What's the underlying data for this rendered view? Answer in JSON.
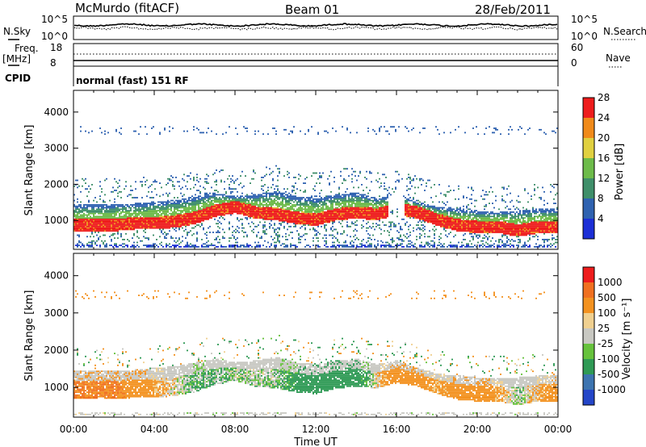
{
  "header": {
    "station": "McMurdo (fitACF)",
    "beam": "Beam 01",
    "date": "28/Feb/2011"
  },
  "top_panel": {
    "nsky_label": "N.Sky",
    "nsearch_label": "N.Search",
    "left_ticks": [
      "10^5",
      "10^0"
    ],
    "right_ticks": [
      "10^5",
      "10^0"
    ],
    "freq_label_line1": "Freq.",
    "freq_label_line2": "[MHz]",
    "freq_ticks": [
      "18",
      "8"
    ],
    "nave_label": "Nave",
    "nave_ticks": [
      "60",
      "0"
    ],
    "cpid_label": "CPID",
    "cpid_value": "normal (fast) 151 RF"
  },
  "chart_data": [
    {
      "type": "heatmap",
      "name": "power-panel",
      "xlabel": "Time UT",
      "ylabel": "Slant Range [km]",
      "colorbar_label": "Power [dB]",
      "x_ticks": [
        "00:00",
        "04:00",
        "08:00",
        "12:00",
        "16:00",
        "20:00",
        "00:00"
      ],
      "y_ticks": [
        1000,
        2000,
        3000,
        4000
      ],
      "ylim": [
        200,
        4600
      ],
      "xlim_hours": [
        0,
        24
      ],
      "colorbar_ticks": [
        "4",
        "8",
        "12",
        "16",
        "20",
        "24",
        "28"
      ],
      "colors": [
        "#1c2fd6",
        "#2f62b0",
        "#3f8f6a",
        "#6dbb4a",
        "#e0d040",
        "#f08a1a",
        "#ee1c1c"
      ],
      "series": [
        {
          "role": "core_range_km",
          "x_hours": [
            0,
            2,
            3,
            4,
            5,
            6,
            7,
            8,
            9,
            10,
            11,
            12,
            13,
            14,
            15,
            16,
            17,
            18,
            19,
            20,
            21,
            22,
            23,
            24
          ],
          "values": [
            850,
            850,
            900,
            900,
            950,
            1050,
            1250,
            1350,
            1200,
            1150,
            1050,
            1000,
            1150,
            1200,
            1150,
            1300,
            1200,
            1000,
            850,
            800,
            800,
            700,
            800,
            800
          ]
        },
        {
          "role": "upper_range_km",
          "x_hours": [
            0,
            2,
            3,
            4,
            5,
            6,
            7,
            8,
            9,
            10,
            11,
            12,
            13,
            14,
            15,
            16,
            17,
            18,
            19,
            20,
            21,
            22,
            23,
            24
          ],
          "values": [
            1450,
            1450,
            1450,
            1500,
            1550,
            1650,
            1750,
            1650,
            1700,
            1800,
            1650,
            1600,
            1700,
            1750,
            1600,
            1700,
            1500,
            1350,
            1300,
            1250,
            1250,
            1250,
            1300,
            1300
          ]
        }
      ]
    },
    {
      "type": "heatmap",
      "name": "velocity-panel",
      "xlabel": "Time UT",
      "ylabel": "Slant Range [km]",
      "colorbar_label": "Velocity [m s⁻¹]",
      "x_ticks": [
        "00:00",
        "04:00",
        "08:00",
        "12:00",
        "16:00",
        "20:00",
        "00:00"
      ],
      "y_ticks": [
        1000,
        2000,
        3000,
        4000
      ],
      "ylim": [
        200,
        4600
      ],
      "xlim_hours": [
        0,
        24
      ],
      "colorbar_ticks": [
        "1000",
        "500",
        "100",
        "25",
        "-25",
        "-100",
        "-500",
        "-1000"
      ],
      "colors": [
        "#2446c8",
        "#3d74b0",
        "#2f9a55",
        "#66c23c",
        "#c8c8c2",
        "#f0d090",
        "#f39220",
        "#f07020",
        "#ee1c1c"
      ],
      "series": [
        {
          "role": "dominant_velocity_by_hour",
          "x_hours": [
            0,
            2,
            4,
            6,
            8,
            10,
            12,
            14,
            16,
            18,
            20,
            22,
            24
          ],
          "values": [
            -300,
            -300,
            -80,
            60,
            20,
            30,
            200,
            150,
            -200,
            -80,
            -200,
            30,
            -150
          ]
        }
      ]
    }
  ]
}
